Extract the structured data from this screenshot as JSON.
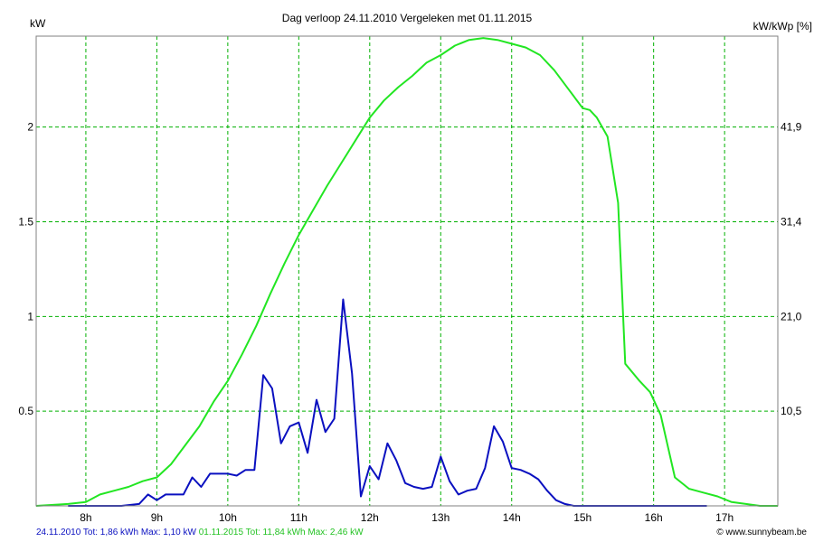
{
  "chart_data": {
    "type": "line",
    "title": "Dag  verloop 24.11.2010   Vergeleken met 01.11.2015",
    "ylabel_left": "kW",
    "ylabel_right": "kW/kWp [%]",
    "x_ticks": [
      "8h",
      "9h",
      "10h",
      "11h",
      "12h",
      "13h",
      "14h",
      "15h",
      "16h",
      "17h"
    ],
    "x_range": [
      7.3,
      17.75
    ],
    "ylim": [
      0,
      2.48
    ],
    "y_ticks_left": [
      0.5,
      1,
      1.5,
      2
    ],
    "y_tick_labels_left": [
      "0.5",
      "1",
      "1.5",
      "2"
    ],
    "y_tick_labels_right": [
      "10,5",
      "21,0",
      "31,4",
      "41,9"
    ],
    "grid": true,
    "colors": {
      "series1": "#0a10c0",
      "series2": "#22e622",
      "grid": "#00b000"
    },
    "series": [
      {
        "name": "24.11.2010",
        "color": "#0a10c0",
        "x": [
          7.75,
          8.0,
          8.25,
          8.5,
          8.75,
          8.875,
          9.0,
          9.125,
          9.25,
          9.375,
          9.5,
          9.625,
          9.75,
          9.875,
          10.0,
          10.125,
          10.25,
          10.375,
          10.5,
          10.625,
          10.75,
          10.875,
          11.0,
          11.125,
          11.25,
          11.375,
          11.5,
          11.625,
          11.75,
          11.875,
          12.0,
          12.125,
          12.25,
          12.375,
          12.5,
          12.625,
          12.75,
          12.875,
          13.0,
          13.125,
          13.25,
          13.375,
          13.5,
          13.625,
          13.75,
          13.875,
          14.0,
          14.125,
          14.25,
          14.375,
          14.5,
          14.625,
          14.75,
          14.875,
          15.0,
          15.125,
          15.25,
          15.375,
          15.5,
          15.625,
          15.75,
          15.875,
          16.0,
          16.125,
          16.25,
          16.5,
          16.75
        ],
        "values": [
          0,
          0,
          0,
          0,
          0.01,
          0.06,
          0.03,
          0.06,
          0.06,
          0.06,
          0.15,
          0.1,
          0.17,
          0.17,
          0.17,
          0.16,
          0.19,
          0.19,
          0.69,
          0.62,
          0.33,
          0.42,
          0.44,
          0.28,
          0.56,
          0.39,
          0.46,
          1.09,
          0.7,
          0.05,
          0.21,
          0.14,
          0.33,
          0.24,
          0.12,
          0.1,
          0.09,
          0.1,
          0.26,
          0.13,
          0.06,
          0.08,
          0.09,
          0.2,
          0.42,
          0.34,
          0.2,
          0.19,
          0.17,
          0.14,
          0.08,
          0.03,
          0.01,
          0,
          0,
          0,
          0,
          0,
          0,
          0,
          0,
          0,
          0,
          0,
          0,
          0,
          0
        ]
      },
      {
        "name": "01.11.2015",
        "color": "#22e622",
        "x": [
          7.3,
          7.75,
          8.0,
          8.2,
          8.4,
          8.6,
          8.8,
          9.0,
          9.2,
          9.4,
          9.6,
          9.8,
          10.0,
          10.2,
          10.4,
          10.6,
          10.8,
          11.0,
          11.2,
          11.4,
          11.6,
          11.8,
          12.0,
          12.2,
          12.4,
          12.6,
          12.8,
          13.0,
          13.2,
          13.4,
          13.6,
          13.8,
          14.0,
          14.2,
          14.4,
          14.6,
          14.8,
          15.0,
          15.1,
          15.2,
          15.35,
          15.5,
          15.6,
          15.8,
          15.95,
          16.1,
          16.3,
          16.5,
          16.7,
          16.9,
          17.1,
          17.3,
          17.5,
          17.75
        ],
        "values": [
          0,
          0.01,
          0.02,
          0.06,
          0.08,
          0.1,
          0.13,
          0.15,
          0.22,
          0.32,
          0.42,
          0.55,
          0.66,
          0.8,
          0.95,
          1.12,
          1.28,
          1.43,
          1.56,
          1.69,
          1.81,
          1.93,
          2.05,
          2.14,
          2.21,
          2.27,
          2.34,
          2.38,
          2.43,
          2.46,
          2.47,
          2.46,
          2.44,
          2.42,
          2.38,
          2.3,
          2.2,
          2.1,
          2.09,
          2.05,
          1.95,
          1.6,
          0.75,
          0.66,
          0.6,
          0.48,
          0.15,
          0.09,
          0.07,
          0.05,
          0.02,
          0.01,
          0,
          0
        ]
      }
    ],
    "footer_left_series1": "24.11.2010 Tot: 1,86 kWh Max: 1,10 kW",
    "footer_left_series2": "01.11.2015 Tot: 11,84 kWh Max: 2,46 kW",
    "footer_right": "© www.sunnybeam.be"
  }
}
